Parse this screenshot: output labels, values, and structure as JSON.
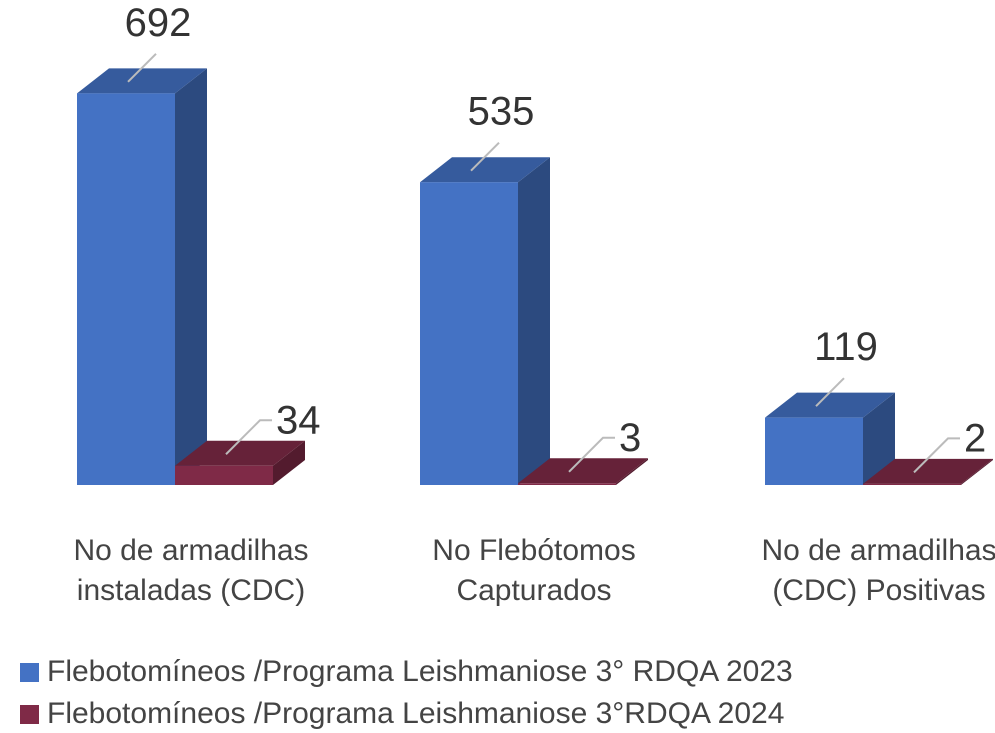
{
  "chart_data": {
    "type": "bar3d",
    "categories": [
      "No de armadilhas instaladas (CDC)",
      "No Flebótomos Capturados",
      "No de armadilhas (CDC) Positivas"
    ],
    "series": [
      {
        "name": "Flebotomíneos /Programa Leishmaniose 3° RDQA 2023",
        "color": "#4472c4",
        "values": [
          692,
          535,
          119
        ]
      },
      {
        "name": "Flebotomíneos /Programa Leishmaniose 3°RDQA 2024",
        "color": "#7f2a47",
        "values": [
          34,
          3,
          2
        ]
      }
    ]
  }
}
